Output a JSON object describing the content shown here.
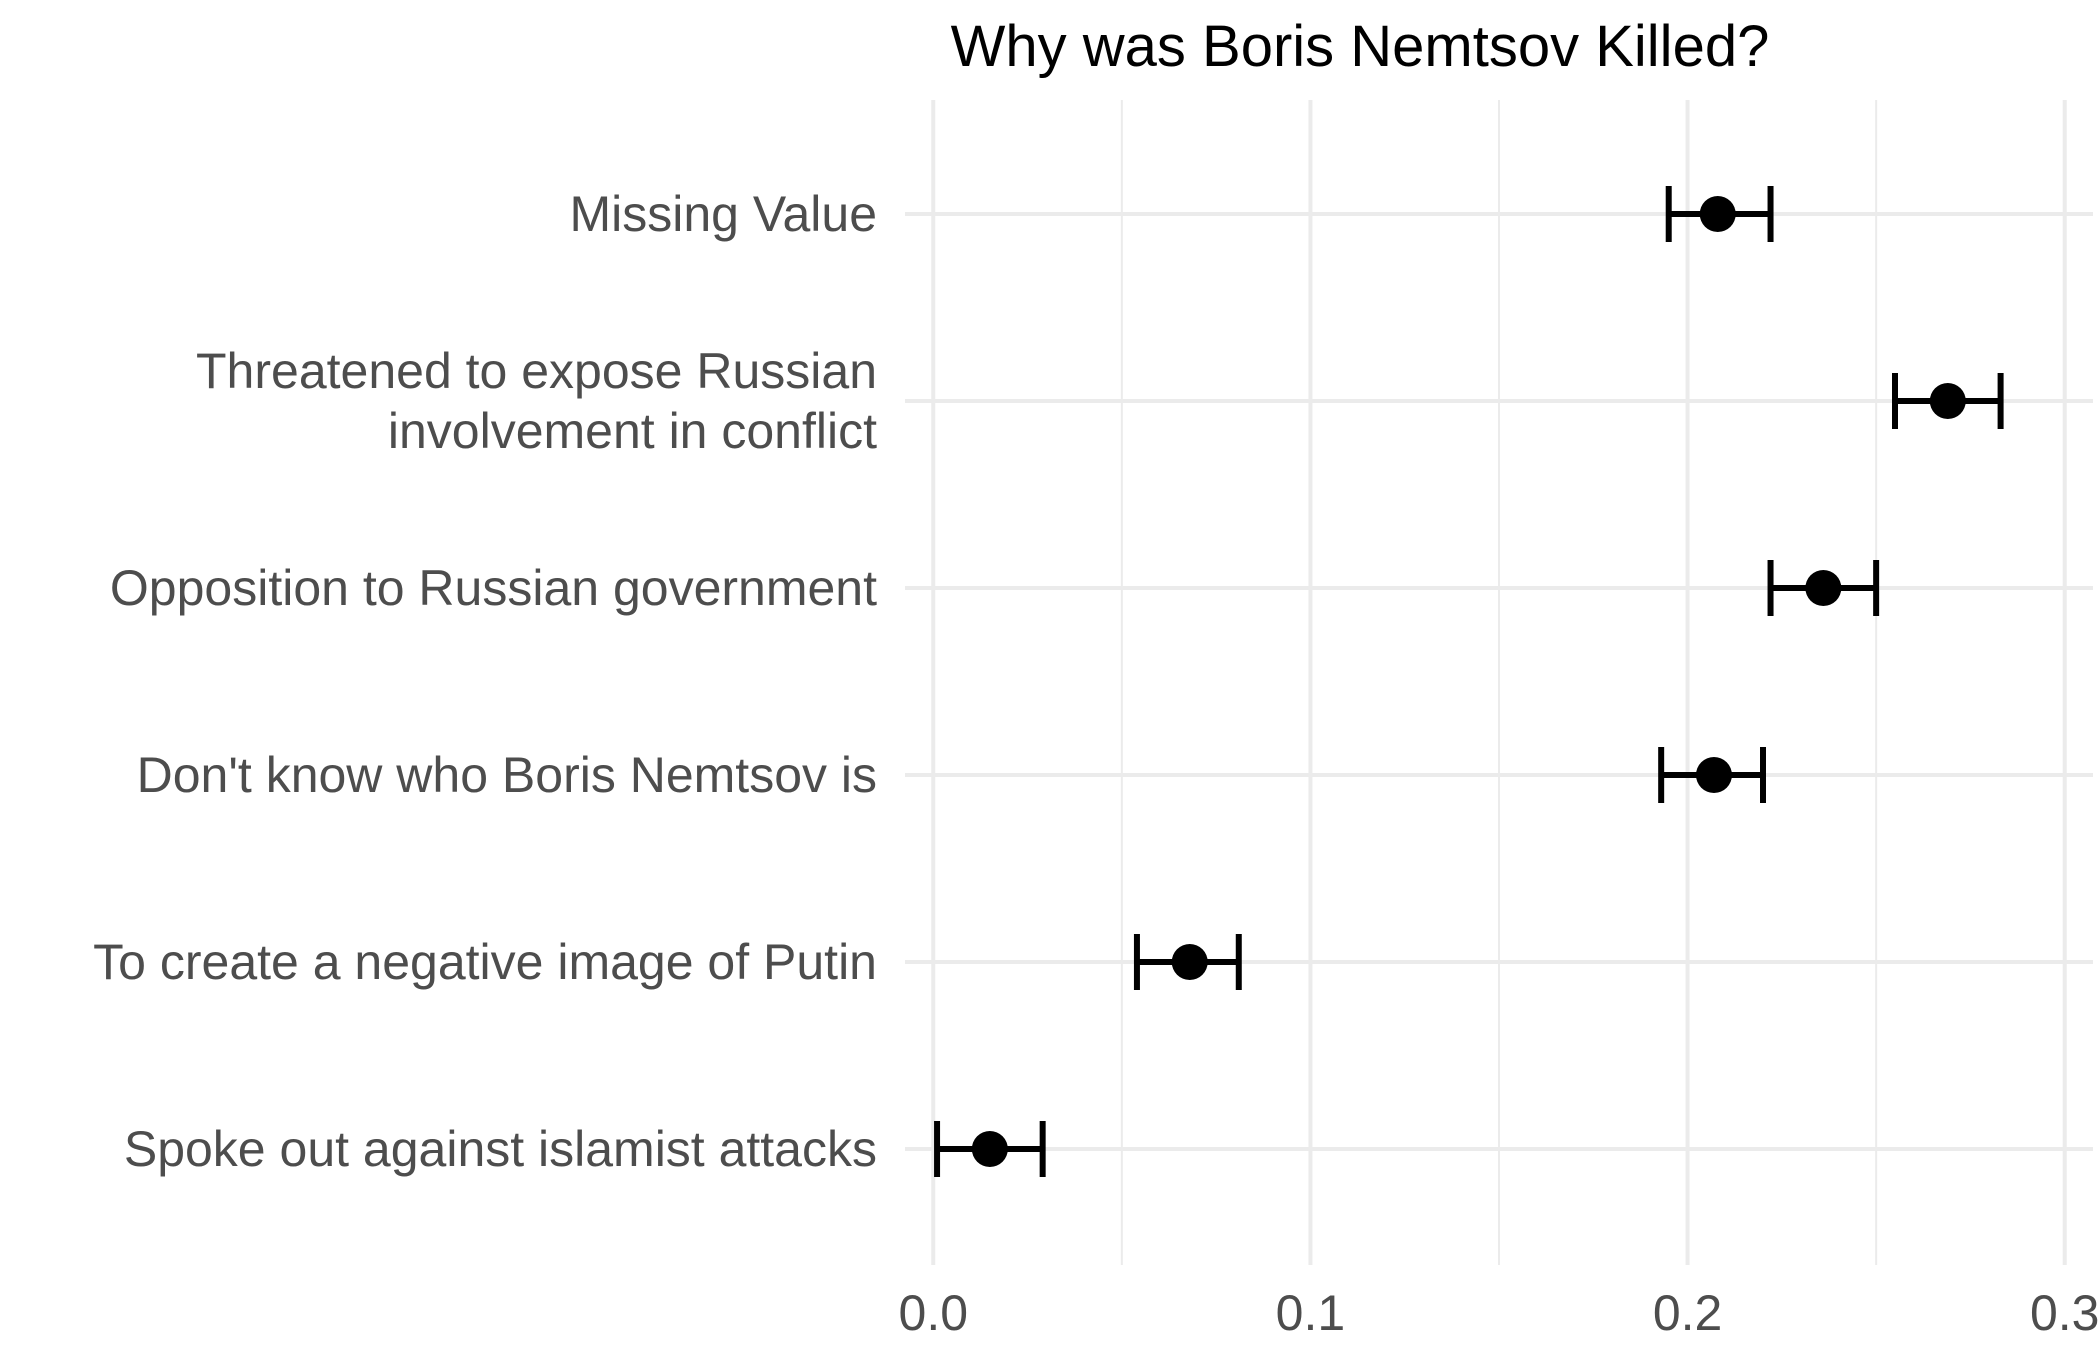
{
  "chart_data": {
    "type": "scatter",
    "title": "Why was Boris Nemtsov Killed?",
    "xlabel": "",
    "ylabel": "",
    "xlim": [
      -0.0075,
      0.3075
    ],
    "x_ticks": [
      "0.0",
      "0.1",
      "0.2",
      "0.3"
    ],
    "x_tick_values": [
      0.0,
      0.1,
      0.2,
      0.3
    ],
    "x_minor_values": [
      0.05,
      0.15,
      0.25
    ],
    "grid": true,
    "legend": "none",
    "point_color": "#000000",
    "categories": [
      {
        "label_lines": [
          "Missing Value"
        ],
        "estimate": 0.208,
        "lower": 0.195,
        "upper": 0.222
      },
      {
        "label_lines": [
          "Threatened to expose Russian",
          "involvement in conflict"
        ],
        "estimate": 0.269,
        "lower": 0.255,
        "upper": 0.283
      },
      {
        "label_lines": [
          "Opposition to Russian government"
        ],
        "estimate": 0.236,
        "lower": 0.222,
        "upper": 0.25
      },
      {
        "label_lines": [
          "Don't know who Boris Nemtsov is"
        ],
        "estimate": 0.207,
        "lower": 0.193,
        "upper": 0.22
      },
      {
        "label_lines": [
          "To create a negative image of Putin"
        ],
        "estimate": 0.068,
        "lower": 0.054,
        "upper": 0.081
      },
      {
        "label_lines": [
          "Spoke out against islamist attacks"
        ],
        "estimate": 0.015,
        "lower": 0.001,
        "upper": 0.029
      }
    ]
  }
}
